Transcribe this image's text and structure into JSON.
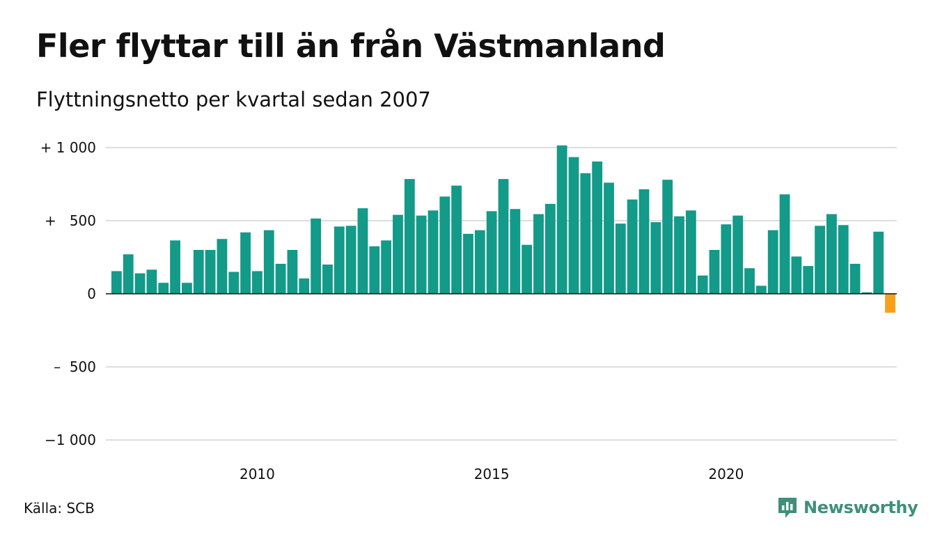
{
  "title": "Fler flyttar till än från Västmanland",
  "subtitle": "Flyttningsnetto per kvartal sedan 2007",
  "source": "Källa: SCB",
  "brand": "Newsworthy",
  "colors": {
    "positive": "#139a88",
    "negative": "#f7a11a",
    "grid": "#dddddd",
    "axis": "#111111",
    "brand": "#3f8f7b"
  },
  "chart_data": {
    "type": "bar",
    "title": "Fler flyttar till än från Västmanland",
    "subtitle": "Flyttningsnetto per kvartal sedan 2007",
    "x_start": "2007 Q1",
    "x_ticks": [
      {
        "label": "2010",
        "index": 12
      },
      {
        "label": "2015",
        "index": 32
      },
      {
        "label": "2020",
        "index": 52
      }
    ],
    "y_ticks": [
      {
        "value": 1000,
        "label": "+ 1 000"
      },
      {
        "value": 500,
        "label": "+   500"
      },
      {
        "value": 0,
        "label": "0"
      },
      {
        "value": -500,
        "label": "–  500"
      },
      {
        "value": -1000,
        "label": "−1 000"
      }
    ],
    "ylim": [
      -1000,
      1000
    ],
    "grid": true,
    "values": [
      155,
      270,
      140,
      165,
      75,
      365,
      75,
      300,
      300,
      375,
      150,
      420,
      155,
      435,
      205,
      300,
      105,
      515,
      200,
      460,
      465,
      585,
      325,
      365,
      540,
      785,
      535,
      570,
      665,
      740,
      410,
      435,
      565,
      785,
      580,
      335,
      545,
      615,
      1015,
      935,
      825,
      905,
      760,
      480,
      645,
      715,
      490,
      780,
      530,
      570,
      125,
      300,
      475,
      535,
      175,
      55,
      435,
      680,
      255,
      190,
      465,
      545,
      470,
      205,
      10,
      425,
      -130
    ]
  }
}
